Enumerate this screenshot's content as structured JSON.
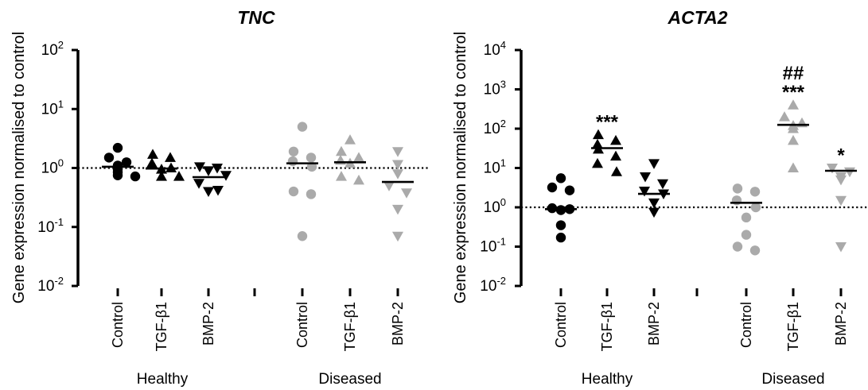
{
  "chart_data": [
    {
      "type": "scatter",
      "title": "TNC",
      "ylabel": "Gene expression normalised to control",
      "yscale": "log",
      "ylim": [
        0.01,
        100
      ],
      "ticks": [
        {
          "value": 0.01,
          "base": "10",
          "exp": "-2"
        },
        {
          "value": 0.1,
          "base": "10",
          "exp": "-1"
        },
        {
          "value": 1,
          "base": "10",
          "exp": "0"
        },
        {
          "value": 10,
          "base": "10",
          "exp": "1"
        },
        {
          "value": 100,
          "base": "10",
          "exp": "2"
        }
      ],
      "reference_line": 1,
      "groups": [
        "Healthy",
        "Diseased"
      ],
      "categories": [
        {
          "label": "Control",
          "group": "Healthy",
          "marker": "circle",
          "color": "#000000",
          "values": [
            2.2,
            1.5,
            1.25,
            1.1,
            0.95,
            0.85,
            0.75,
            0.72
          ],
          "median": 1.05,
          "sig": ""
        },
        {
          "label": "TGF-β1",
          "group": "Healthy",
          "marker": "triangle-up",
          "color": "#000000",
          "values": [
            1.7,
            1.5,
            1.2,
            1.0,
            0.95,
            0.72,
            0.72
          ],
          "median": 0.98,
          "sig": ""
        },
        {
          "label": "BMP-2",
          "group": "Healthy",
          "marker": "triangle-down",
          "color": "#000000",
          "values": [
            1.05,
            1.0,
            0.9,
            0.75,
            0.55,
            0.42,
            0.4
          ],
          "median": 0.7,
          "sig": ""
        },
        {
          "label": "Control",
          "group": "Diseased",
          "marker": "circle",
          "color": "#aaaaaa",
          "values": [
            5.0,
            1.9,
            1.5,
            1.3,
            1.05,
            0.4,
            0.36,
            0.07
          ],
          "median": 1.2,
          "sig": ""
        },
        {
          "label": "TGF-β1",
          "group": "Diseased",
          "marker": "triangle-up",
          "color": "#aaaaaa",
          "values": [
            3.0,
            1.9,
            1.5,
            1.35,
            1.2,
            0.72,
            0.62
          ],
          "median": 1.25,
          "sig": ""
        },
        {
          "label": "BMP-2",
          "group": "Diseased",
          "marker": "triangle-down",
          "color": "#aaaaaa",
          "values": [
            1.9,
            1.15,
            0.8,
            0.5,
            0.38,
            0.2,
            0.07
          ],
          "median": 0.58,
          "sig": ""
        }
      ]
    },
    {
      "type": "scatter",
      "title": "ACTA2",
      "ylabel": "Gene expression normalised to control",
      "yscale": "log",
      "ylim": [
        0.01,
        10000
      ],
      "ticks": [
        {
          "value": 0.01,
          "base": "10",
          "exp": "-2"
        },
        {
          "value": 0.1,
          "base": "10",
          "exp": "-1"
        },
        {
          "value": 1,
          "base": "10",
          "exp": "0"
        },
        {
          "value": 10,
          "base": "10",
          "exp": "1"
        },
        {
          "value": 100,
          "base": "10",
          "exp": "2"
        },
        {
          "value": 1000,
          "base": "10",
          "exp": "3"
        },
        {
          "value": 10000,
          "base": "10",
          "exp": "4"
        }
      ],
      "reference_line": 1,
      "groups": [
        "Healthy",
        "Diseased"
      ],
      "categories": [
        {
          "label": "Control",
          "group": "Healthy",
          "marker": "circle",
          "color": "#000000",
          "values": [
            5.5,
            3.2,
            2.7,
            0.95,
            0.9,
            0.85,
            0.35,
            0.17
          ],
          "median": 0.9,
          "sig": ""
        },
        {
          "label": "TGF-β1",
          "group": "Healthy",
          "marker": "triangle-up",
          "color": "#000000",
          "values": [
            70,
            50,
            40,
            30,
            20,
            13,
            8
          ],
          "median": 32,
          "sig": "***"
        },
        {
          "label": "BMP-2",
          "group": "Healthy",
          "marker": "triangle-down",
          "color": "#000000",
          "values": [
            13,
            6,
            4,
            2.6,
            2.2,
            1.3,
            0.75
          ],
          "median": 2.2,
          "sig": ""
        },
        {
          "label": "Control",
          "group": "Diseased",
          "marker": "circle",
          "color": "#aaaaaa",
          "values": [
            3.0,
            2.5,
            1.5,
            1.0,
            0.55,
            0.2,
            0.1,
            0.08
          ],
          "median": 1.3,
          "sig": ""
        },
        {
          "label": "TGF-β1",
          "group": "Diseased",
          "marker": "triangle-up",
          "color": "#aaaaaa",
          "values": [
            400,
            200,
            140,
            120,
            100,
            50,
            10
          ],
          "median": 125,
          "sig": "***",
          "sig2": "##"
        },
        {
          "label": "BMP-2",
          "group": "Diseased",
          "marker": "triangle-down",
          "color": "#aaaaaa",
          "values": [
            10,
            8,
            6,
            5,
            1.5,
            0.1
          ],
          "median": 8.5,
          "sig": "*"
        }
      ]
    }
  ]
}
